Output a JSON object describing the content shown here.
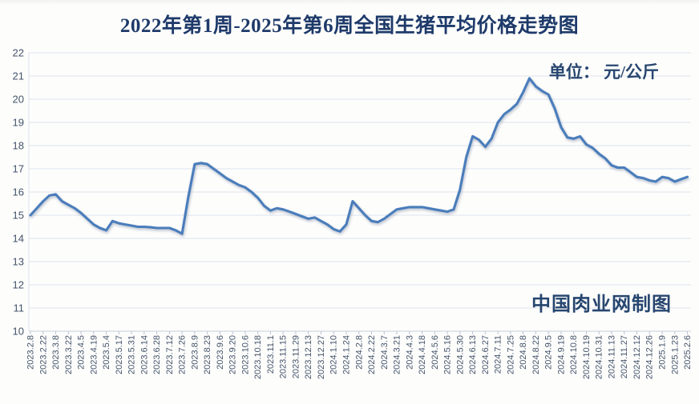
{
  "title": "2022年第1周-2025年第6周全国生猪平均价格走势图",
  "unit_label": "单位： 元/公斤",
  "watermark": "中国肉业网制图",
  "colors": {
    "line": "#4a7dbb",
    "grid": "#dde4ee",
    "axis": "#c7d0dd",
    "tick": "#b9c4d4",
    "label": "#44546a",
    "heading": "#1e3a6a"
  },
  "chart_data": {
    "type": "line",
    "title": "2022年第1周-2025年第6周全国生猪平均价格走势图",
    "ylabel": "元/公斤",
    "xlabel": "",
    "ylim": [
      10,
      22
    ],
    "y_tick_step": 1,
    "grid": true,
    "legend": false,
    "x_labels": [
      "2023.2.8",
      "2023.2.22",
      "2023.3.8",
      "2023.3.22",
      "2023.4.5",
      "2023.4.19",
      "2023.5.4",
      "2023.5.17",
      "2023.5.31",
      "2023.6.14",
      "2023.6.28",
      "2023.7.12",
      "2023.7.26",
      "2023.8.9",
      "2023.8.23",
      "2023.9.6",
      "2023.9.20",
      "2023.10.6",
      "2023.10.18",
      "2023.11.1",
      "2023.11.15",
      "2023.11.29",
      "2023.12.13",
      "2023.12.27",
      "2024.1.10",
      "2024.1.24",
      "2024.2.8",
      "2024.2.22",
      "2024.3.7",
      "2024.3.21",
      "2024.4.3",
      "2024.4.18",
      "2024.5.6",
      "2024.5.16",
      "2024.5.30",
      "2024.6.13",
      "2024.6.27",
      "2024.7.11",
      "2024.7.25",
      "2024.8.8",
      "2024.8.22",
      "2024.9.5",
      "2024.9.19",
      "2024.10.8",
      "2024.10.19",
      "2024.10.31",
      "2024.11.13",
      "2024.11.27",
      "2024.12.12",
      "2024.12.26",
      "2025.1.9",
      "2025.1.23",
      "2025.2.6"
    ],
    "label_every_n_points": 2,
    "values": [
      15.0,
      15.3,
      15.6,
      15.85,
      15.9,
      15.6,
      15.45,
      15.3,
      15.1,
      14.85,
      14.6,
      14.45,
      14.35,
      14.75,
      14.65,
      14.6,
      14.55,
      14.5,
      14.5,
      14.48,
      14.45,
      14.45,
      14.45,
      14.35,
      14.2,
      15.8,
      17.2,
      17.25,
      17.2,
      17.0,
      16.8,
      16.6,
      16.45,
      16.3,
      16.2,
      16.0,
      15.75,
      15.4,
      15.2,
      15.3,
      15.25,
      15.15,
      15.05,
      14.95,
      14.85,
      14.9,
      14.75,
      14.6,
      14.4,
      14.3,
      14.6,
      15.6,
      15.3,
      15.0,
      14.75,
      14.7,
      14.85,
      15.05,
      15.25,
      15.3,
      15.35,
      15.35,
      15.35,
      15.3,
      15.25,
      15.2,
      15.15,
      15.25,
      16.1,
      17.5,
      18.4,
      18.25,
      17.95,
      18.3,
      19.0,
      19.35,
      19.55,
      19.8,
      20.3,
      20.9,
      20.55,
      20.35,
      20.2,
      19.6,
      18.8,
      18.35,
      18.3,
      18.4,
      18.05,
      17.9,
      17.65,
      17.45,
      17.15,
      17.05,
      17.05,
      16.85,
      16.65,
      16.6,
      16.5,
      16.45,
      16.65,
      16.6,
      16.45,
      16.55,
      16.65
    ]
  }
}
